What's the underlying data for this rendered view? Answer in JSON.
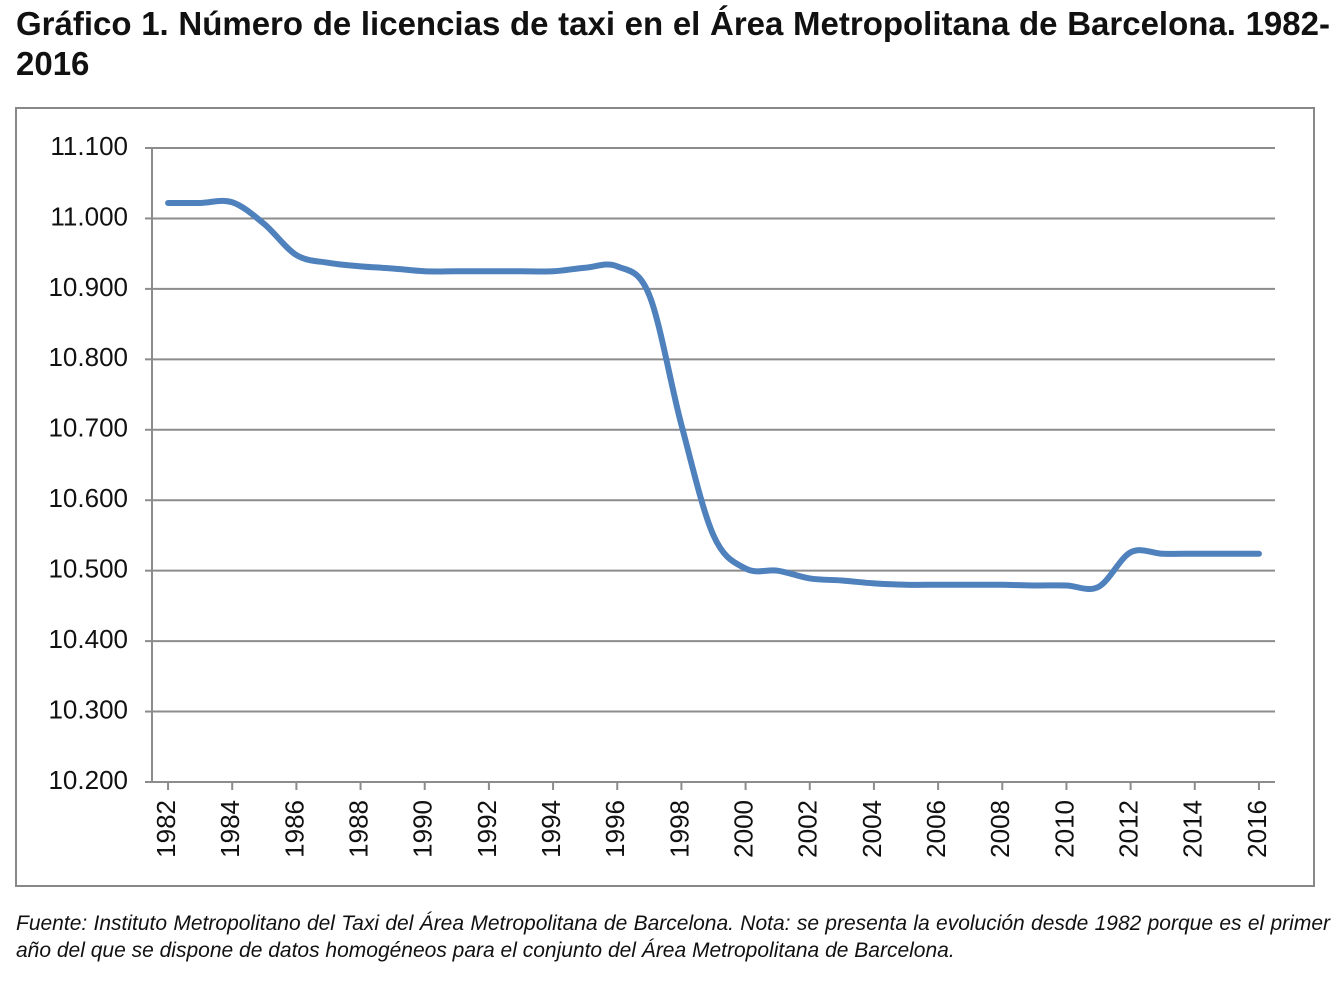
{
  "chart_data": {
    "type": "line",
    "title": "Gráfico 1. Número de licencias de taxi en el Área Metropolitana de Barcelona. 1982-2016",
    "note": "Fuente: Instituto Metropolitano del Taxi del Área Metropolitana de Barcelona. Nota: se presenta la evolución desde 1982 porque es el primer año del que se dispone de datos homogéneos para el conjunto del Área Metropolitana de Barcelona.",
    "x": [
      1982,
      1983,
      1984,
      1985,
      1986,
      1987,
      1988,
      1989,
      1990,
      1991,
      1992,
      1993,
      1994,
      1995,
      1996,
      1997,
      1998,
      1999,
      2000,
      2001,
      2002,
      2003,
      2004,
      2005,
      2006,
      2007,
      2008,
      2009,
      2010,
      2011,
      2012,
      2013,
      2014,
      2015,
      2016
    ],
    "series": [
      {
        "color": "#4f81bd",
        "values": [
          11022,
          11022,
          11023,
          10992,
          10948,
          10937,
          10932,
          10929,
          10925,
          10925,
          10925,
          10925,
          10925,
          10930,
          10932,
          10891,
          10707,
          10550,
          10503,
          10500,
          10489,
          10486,
          10482,
          10480,
          10480,
          10480,
          10480,
          10479,
          10479,
          10477,
          10526,
          10524,
          10524,
          10524,
          10524
        ]
      }
    ],
    "xlim": [
      1981.5,
      2016.5
    ],
    "xticks": [
      1982,
      1984,
      1986,
      1988,
      1990,
      1992,
      1994,
      1996,
      1998,
      2000,
      2002,
      2004,
      2006,
      2008,
      2010,
      2012,
      2014,
      2016
    ],
    "ylim": [
      10200,
      11100
    ],
    "yticks": [
      {
        "value": 10200,
        "label": "10.200"
      },
      {
        "value": 10300,
        "label": "10.300"
      },
      {
        "value": 10400,
        "label": "10.400"
      },
      {
        "value": 10500,
        "label": "10.500"
      },
      {
        "value": 10600,
        "label": "10.600"
      },
      {
        "value": 10700,
        "label": "10.700"
      },
      {
        "value": 10800,
        "label": "10.800"
      },
      {
        "value": 10900,
        "label": "10.900"
      },
      {
        "value": 11000,
        "label": "11.000"
      },
      {
        "value": 11100,
        "label": "11.100"
      }
    ],
    "grid": true
  }
}
